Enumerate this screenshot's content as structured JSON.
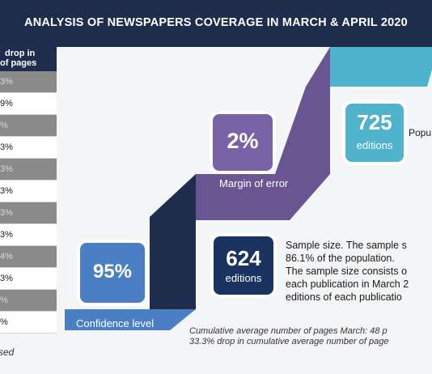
{
  "title": "ANALYSIS OF NEWSPAPERS COVERAGE IN MARCH & APRIL 2020",
  "table": {
    "header_line1": "drop in",
    "header_line2": "of pages",
    "rows": [
      "3%",
      "9%",
      "%",
      "3%",
      "3%",
      "3%",
      "3%",
      "3%",
      "4%",
      "3%",
      "%",
      "%"
    ]
  },
  "footnote": "sed",
  "stats": {
    "population": {
      "value": "725",
      "unit": "editions",
      "label": "Popu"
    },
    "margin": {
      "value": "2%",
      "label": "Margin of error"
    },
    "confidence": {
      "value": "95%",
      "label": "Confidence level"
    },
    "sample": {
      "value": "624",
      "unit": "editions",
      "desc_lines": [
        "Sample size. The sample s",
        "86.1% of the population.",
        "The sample size consists o",
        "each publication in March 2",
        "editions of each publicatio"
      ]
    }
  },
  "notes": [
    "Cumulative average number of pages March: 48 p",
    "33.3% drop in cumulative average number of page"
  ],
  "colors": {
    "navy": "#1f2d4d",
    "teal": "#4fb3cc",
    "purple": "#6a5592",
    "blue": "#4a80c3",
    "dark": "#1a3360"
  }
}
